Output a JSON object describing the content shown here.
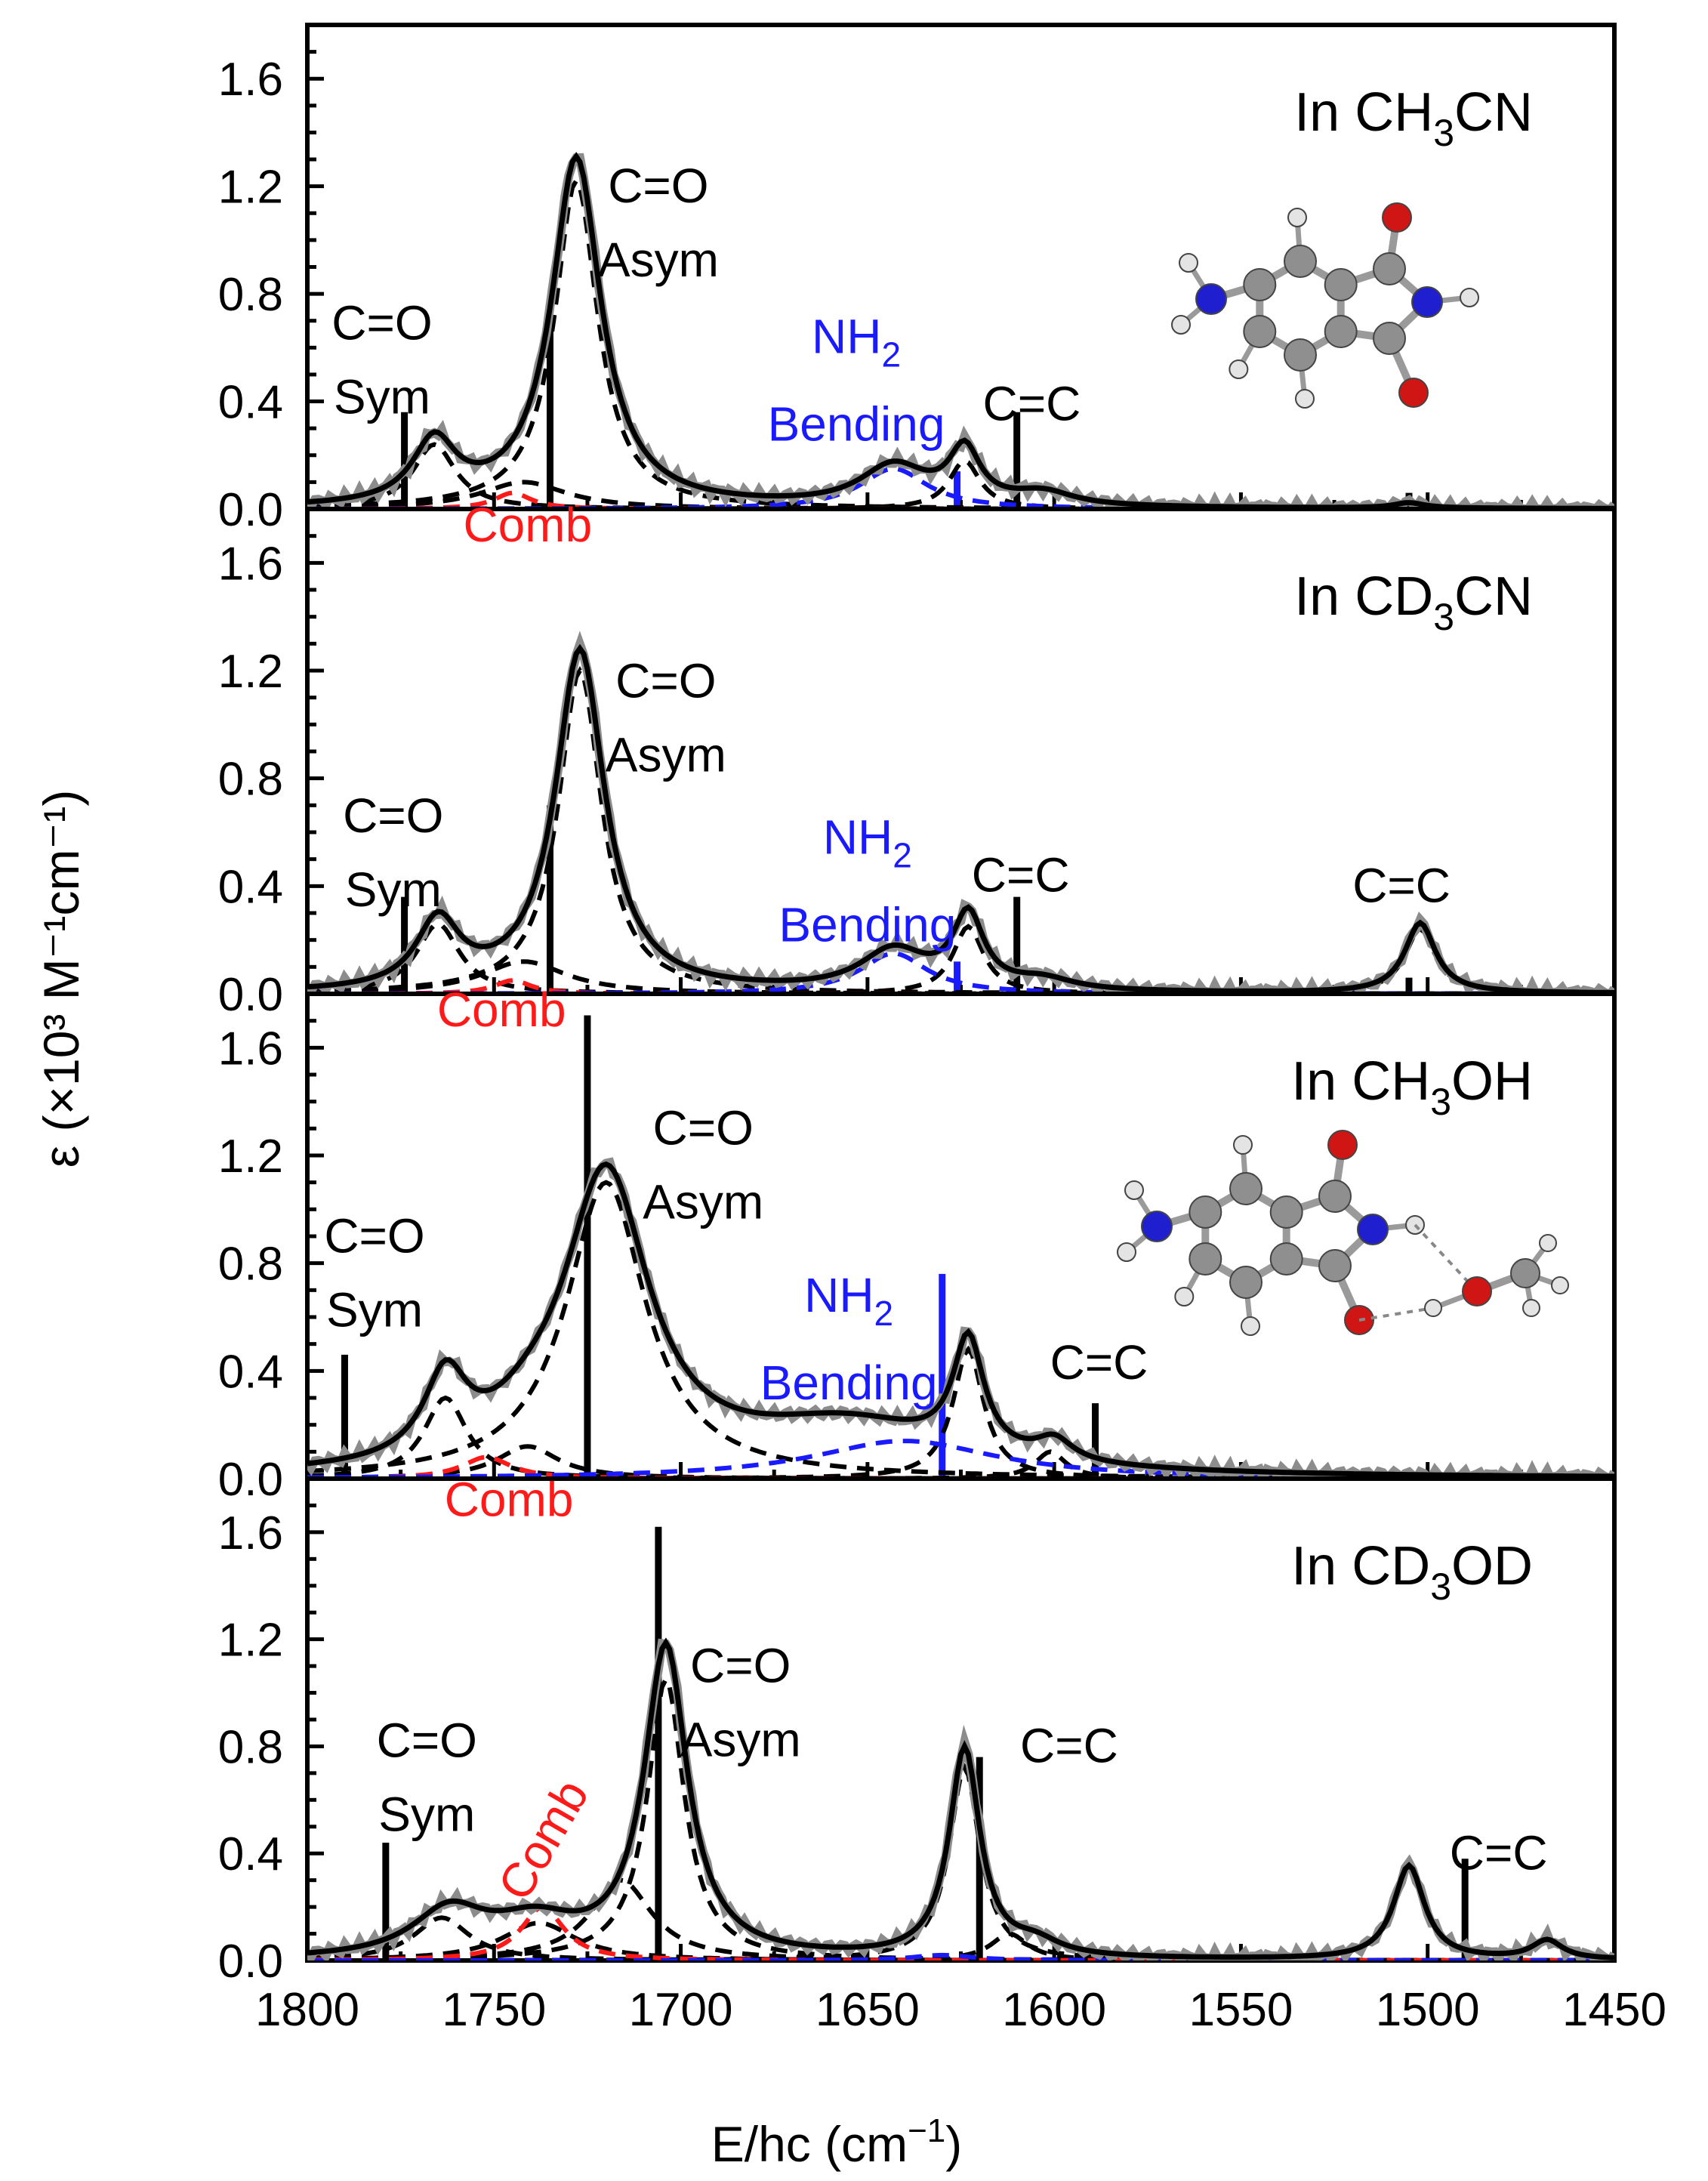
{
  "colors": {
    "fit": "#000000",
    "experiment": "#8c8c8c",
    "comb": "#ff1a1a",
    "nh2": "#1a1aff",
    "component": "#000000"
  },
  "chart_data": {
    "type": "line",
    "xlabel_pre": "E/hc (cm",
    "xlabel_sup": "−1",
    "xlabel_post": ")",
    "ylabel": "ε (×10³ M⁻¹cm⁻¹)",
    "xlim": [
      1800,
      1450
    ],
    "ylim": [
      0,
      1.8
    ],
    "xticks": [
      1800,
      1750,
      1700,
      1650,
      1600,
      1550,
      1500,
      1450
    ],
    "yticks": [
      0.0,
      0.4,
      0.8,
      1.2,
      1.6
    ],
    "ytick_labels": [
      "0.0",
      "0.4",
      "0.8",
      "1.2",
      "1.6"
    ],
    "panels": [
      {
        "label_pre": "In CH",
        "label_sub1": "3",
        "label_post": "CN",
        "label_sub2": "",
        "label_end": "",
        "fit_peaks": [
          {
            "center": 1766,
            "height": 0.23,
            "width": 7
          },
          {
            "center": 1728,
            "height": 1.3,
            "width": 8
          },
          {
            "center": 1643,
            "height": 0.15,
            "width": 11
          },
          {
            "center": 1624,
            "height": 0.2,
            "width": 5
          },
          {
            "center": 1603,
            "height": 0.05,
            "width": 10
          },
          {
            "center": 1505,
            "height": 0.02,
            "width": 5
          }
        ],
        "components": [
          {
            "kind": "fit",
            "center": 1766,
            "height": 0.24,
            "width": 7
          },
          {
            "kind": "fit",
            "center": 1742,
            "height": 0.1,
            "width": 14
          },
          {
            "kind": "fit",
            "center": 1728,
            "height": 1.22,
            "width": 7
          },
          {
            "kind": "fit",
            "center": 1624,
            "height": 0.18,
            "width": 5
          },
          {
            "kind": "comb",
            "center": 1745,
            "height": 0.06,
            "width": 6
          },
          {
            "kind": "nh2",
            "center": 1643,
            "height": 0.15,
            "width": 11
          }
        ],
        "sticks": [
          {
            "x": 1774,
            "y": 0.36,
            "color": "black"
          },
          {
            "x": 1735,
            "y": 0.72,
            "color": "black"
          },
          {
            "x": 1626,
            "y": 0.14,
            "color": "blue"
          },
          {
            "x": 1610,
            "y": 0.36,
            "color": "black"
          },
          {
            "x": 1588,
            "y": 0.03,
            "color": "black"
          },
          {
            "x": 1505,
            "y": 0.06,
            "color": "black"
          }
        ],
        "annotations": [
          {
            "id": "cosym",
            "lines": [
              "C=O",
              "Sym"
            ],
            "x": 1780,
            "y": 0.63,
            "color": "black",
            "anchor": "middle"
          },
          {
            "id": "coasym",
            "lines": [
              "C=O",
              "Asym"
            ],
            "x": 1706,
            "y": 1.14,
            "color": "black",
            "anchor": "middle"
          },
          {
            "id": "cc1",
            "lines": [
              "C=C"
            ],
            "x": 1606,
            "y": 0.33,
            "color": "black",
            "anchor": "middle"
          },
          {
            "id": "nh2",
            "lines": [
              "NH|2",
              "Bending"
            ],
            "x": 1653,
            "y": 0.58,
            "color": "blue",
            "anchor": "middle"
          }
        ]
      },
      {
        "label_pre": "In CD",
        "label_sub1": "3",
        "label_post": "CN",
        "label_sub2": "",
        "label_end": "",
        "fit_peaks": [
          {
            "center": 1765,
            "height": 0.25,
            "width": 7
          },
          {
            "center": 1727,
            "height": 1.27,
            "width": 8
          },
          {
            "center": 1643,
            "height": 0.15,
            "width": 11
          },
          {
            "center": 1623,
            "height": 0.27,
            "width": 5
          },
          {
            "center": 1603,
            "height": 0.04,
            "width": 10
          },
          {
            "center": 1502,
            "height": 0.26,
            "width": 5
          }
        ],
        "components": [
          {
            "kind": "fit",
            "center": 1765,
            "height": 0.26,
            "width": 7
          },
          {
            "kind": "fit",
            "center": 1742,
            "height": 0.12,
            "width": 14
          },
          {
            "kind": "fit",
            "center": 1727,
            "height": 1.2,
            "width": 7
          },
          {
            "kind": "fit",
            "center": 1623,
            "height": 0.25,
            "width": 5
          },
          {
            "kind": "fit",
            "center": 1502,
            "height": 0.24,
            "width": 5
          },
          {
            "kind": "comb",
            "center": 1745,
            "height": 0.05,
            "width": 6
          },
          {
            "kind": "nh2",
            "center": 1643,
            "height": 0.15,
            "width": 11
          }
        ],
        "sticks": [
          {
            "x": 1774,
            "y": 0.36,
            "color": "black"
          },
          {
            "x": 1735,
            "y": 0.7,
            "color": "black"
          },
          {
            "x": 1626,
            "y": 0.12,
            "color": "blue"
          },
          {
            "x": 1610,
            "y": 0.36,
            "color": "black"
          },
          {
            "x": 1505,
            "y": 0.06,
            "color": "black"
          }
        ],
        "annotations": [
          {
            "id": "comb1",
            "lines": [
              "Comb"
            ],
            "x": 1741,
            "y": 1.68,
            "color": "red",
            "anchor": "middle"
          },
          {
            "id": "cosym",
            "lines": [
              "C=O",
              "Sym"
            ],
            "x": 1777,
            "y": 0.6,
            "color": "black",
            "anchor": "middle"
          },
          {
            "id": "coasym",
            "lines": [
              "C=O",
              "Asym"
            ],
            "x": 1704,
            "y": 1.1,
            "color": "black",
            "anchor": "middle"
          },
          {
            "id": "nh2",
            "lines": [
              "NH|2",
              "Bending"
            ],
            "x": 1650,
            "y": 0.52,
            "color": "blue",
            "anchor": "middle"
          },
          {
            "id": "cc1",
            "lines": [
              "C=C"
            ],
            "x": 1609,
            "y": 0.38,
            "color": "black",
            "anchor": "middle"
          },
          {
            "id": "cc2",
            "lines": [
              "C=C"
            ],
            "x": 1507,
            "y": 0.34,
            "color": "black",
            "anchor": "middle"
          }
        ]
      },
      {
        "label_pre": "In CH",
        "label_sub1": "3",
        "label_post": "OH",
        "label_sub2": "",
        "label_end": "",
        "fit_peaks": [
          {
            "center": 1763,
            "height": 0.3,
            "width": 7
          },
          {
            "center": 1741,
            "height": 0.08,
            "width": 12
          },
          {
            "center": 1720,
            "height": 1.1,
            "width": 14
          },
          {
            "center": 1655,
            "height": 0.18,
            "width": 34
          },
          {
            "center": 1623,
            "height": 0.42,
            "width": 5
          },
          {
            "center": 1600,
            "height": 0.08,
            "width": 6
          }
        ],
        "components": [
          {
            "kind": "fit",
            "center": 1763,
            "height": 0.3,
            "width": 7
          },
          {
            "kind": "fit",
            "center": 1741,
            "height": 0.12,
            "width": 10
          },
          {
            "kind": "fit",
            "center": 1720,
            "height": 1.1,
            "width": 13
          },
          {
            "kind": "fit",
            "center": 1623,
            "height": 0.48,
            "width": 5
          },
          {
            "kind": "fit",
            "center": 1601,
            "height": 0.1,
            "width": 5
          },
          {
            "kind": "comb",
            "center": 1752,
            "height": 0.08,
            "width": 8
          },
          {
            "kind": "nh2",
            "center": 1640,
            "height": 0.14,
            "width": 30
          }
        ],
        "sticks": [
          {
            "x": 1790,
            "y": 0.46,
            "color": "black"
          },
          {
            "x": 1725,
            "y": 1.72,
            "color": "black"
          },
          {
            "x": 1630,
            "y": 0.76,
            "color": "blue"
          },
          {
            "x": 1589,
            "y": 0.28,
            "color": "black"
          }
        ],
        "annotations": [
          {
            "id": "comb1",
            "lines": [
              "Comb"
            ],
            "x": 1748,
            "y": 1.68,
            "color": "red",
            "anchor": "middle"
          },
          {
            "id": "cosym",
            "lines": [
              "C=O",
              "Sym"
            ],
            "x": 1782,
            "y": 0.84,
            "color": "black",
            "anchor": "middle"
          },
          {
            "id": "coasym",
            "lines": [
              "C=O",
              "Asym"
            ],
            "x": 1694,
            "y": 1.24,
            "color": "black",
            "anchor": "middle"
          },
          {
            "id": "nh2",
            "lines": [
              "NH|2",
              "Bending"
            ],
            "x": 1655,
            "y": 0.62,
            "color": "blue",
            "anchor": "middle"
          },
          {
            "id": "cc1",
            "lines": [
              "C=C"
            ],
            "x": 1588,
            "y": 0.37,
            "color": "black",
            "anchor": "middle"
          }
        ]
      },
      {
        "label_pre": "In CD",
        "label_sub1": "3",
        "label_post": "OD",
        "label_sub2": "",
        "label_end": "",
        "fit_peaks": [
          {
            "center": 1762,
            "height": 0.17,
            "width": 12
          },
          {
            "center": 1739,
            "height": 0.12,
            "width": 14
          },
          {
            "center": 1704,
            "height": 1.16,
            "width": 7
          },
          {
            "center": 1624,
            "height": 0.78,
            "width": 5
          },
          {
            "center": 1605,
            "height": 0.05,
            "width": 8
          },
          {
            "center": 1505,
            "height": 0.35,
            "width": 5
          },
          {
            "center": 1468,
            "height": 0.07,
            "width": 5
          }
        ],
        "components": [
          {
            "kind": "fit",
            "center": 1764,
            "height": 0.16,
            "width": 9
          },
          {
            "kind": "fit",
            "center": 1738,
            "height": 0.14,
            "width": 12
          },
          {
            "kind": "fit",
            "center": 1716,
            "height": 0.3,
            "width": 10
          },
          {
            "kind": "fit",
            "center": 1704,
            "height": 1.05,
            "width": 6
          },
          {
            "kind": "fit",
            "center": 1624,
            "height": 0.72,
            "width": 5
          },
          {
            "kind": "fit",
            "center": 1612,
            "height": 0.1,
            "width": 6
          },
          {
            "kind": "comb",
            "center": 1737,
            "height": 0.2,
            "width": 7
          },
          {
            "kind": "nh2",
            "center": 1630,
            "height": 0.02,
            "width": 10
          }
        ],
        "sticks": [
          {
            "x": 1779,
            "y": 0.44,
            "color": "black"
          },
          {
            "x": 1706,
            "y": 1.62,
            "color": "black"
          },
          {
            "x": 1620,
            "y": 0.76,
            "color": "black"
          },
          {
            "x": 1490,
            "y": 0.38,
            "color": "black"
          }
        ],
        "annotations": [
          {
            "id": "comb1",
            "lines": [
              "Comb"
            ],
            "x": 1746,
            "y": 1.66,
            "color": "red",
            "anchor": "middle"
          },
          {
            "id": "cosym",
            "lines": [
              "C=O",
              "Sym"
            ],
            "x": 1768,
            "y": 0.76,
            "color": "black",
            "anchor": "middle"
          },
          {
            "id": "comb2",
            "lines": [
              "Comb"
            ],
            "x": 1733,
            "y": 0.42,
            "color": "red",
            "anchor": "middle",
            "rotate": -60
          },
          {
            "id": "coasym",
            "lines": [
              "C=O",
              "Asym"
            ],
            "x": 1684,
            "y": 1.04,
            "color": "black",
            "anchor": "middle"
          },
          {
            "id": "cc1",
            "lines": [
              "C=C"
            ],
            "x": 1596,
            "y": 0.74,
            "color": "black",
            "anchor": "middle"
          },
          {
            "id": "cc2",
            "lines": [
              "C=C"
            ],
            "x": 1481,
            "y": 0.34,
            "color": "black",
            "anchor": "middle"
          }
        ]
      }
    ]
  }
}
